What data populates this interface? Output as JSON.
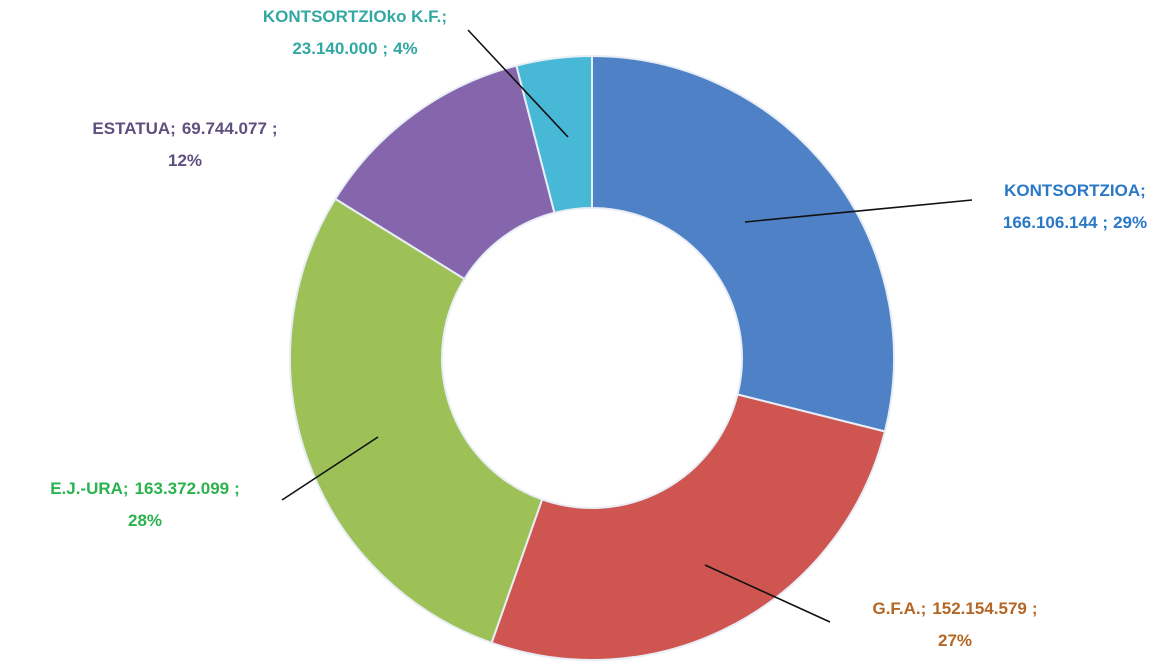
{
  "chart_data": {
    "type": "donut",
    "categories": [
      "KONTSORTZIOA",
      "G.F.A.",
      "E.J.-URA",
      "ESTATUA",
      "KONTSORTZIOko K.F."
    ],
    "values": [
      166106144,
      152154579,
      163372099,
      69744077,
      23140000
    ],
    "value_labels": [
      "166.106.144",
      "152.154.579",
      "163.372.099",
      "69.744.077",
      "23.140.000"
    ],
    "percents": [
      29,
      27,
      28,
      12,
      4
    ],
    "percent_labels": [
      "29%",
      "27%",
      "28%",
      "12%",
      "4%"
    ],
    "separator": ";",
    "colors": [
      "#4f81c7",
      "#cf5551",
      "#9dc157",
      "#8566ad",
      "#47b8d6"
    ],
    "label_colors": [
      "#2a78c6",
      "#b46625",
      "#2bb24f",
      "#5f4f7e",
      "#33a8a2"
    ]
  }
}
